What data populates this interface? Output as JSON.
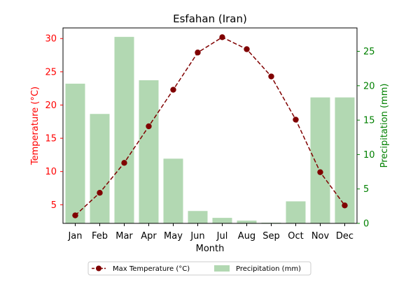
{
  "chart_data": {
    "type": "bar+line",
    "title": "Esfahan (Iran)",
    "xlabel": "Month",
    "categories": [
      "Jan",
      "Feb",
      "Mar",
      "Apr",
      "May",
      "Jun",
      "Jul",
      "Aug",
      "Sep",
      "Oct",
      "Nov",
      "Dec"
    ],
    "left_axis": {
      "label": "Temperature (°C)",
      "color": "#ff0000",
      "ylim": [
        2.2,
        31.6
      ],
      "ticks": [
        5,
        10,
        15,
        20,
        25,
        30
      ]
    },
    "right_axis": {
      "label": "Precipitation (mm)",
      "color": "#008000",
      "ylim": [
        0,
        28.4
      ],
      "ticks": [
        0,
        5,
        10,
        15,
        20,
        25
      ]
    },
    "series": [
      {
        "name": "Max Temperature (°C)",
        "type": "line",
        "axis": "left",
        "color": "#800000",
        "line_style": "dashed",
        "marker": "circle",
        "values": [
          3.4,
          6.8,
          11.3,
          16.8,
          22.3,
          27.9,
          30.2,
          28.4,
          24.3,
          17.8,
          9.9,
          4.9
        ]
      },
      {
        "name": "Precipitation (mm)",
        "type": "bar",
        "axis": "right",
        "color": "#b2d8b2",
        "values": [
          20.3,
          15.9,
          27.1,
          20.8,
          9.4,
          1.8,
          0.8,
          0.4,
          0.1,
          3.2,
          18.3,
          18.3
        ]
      }
    ],
    "legend": {
      "placement": "bottom-center",
      "entries": [
        "Max Temperature (°C)",
        "Precipitation (mm)"
      ]
    },
    "grid": false
  }
}
